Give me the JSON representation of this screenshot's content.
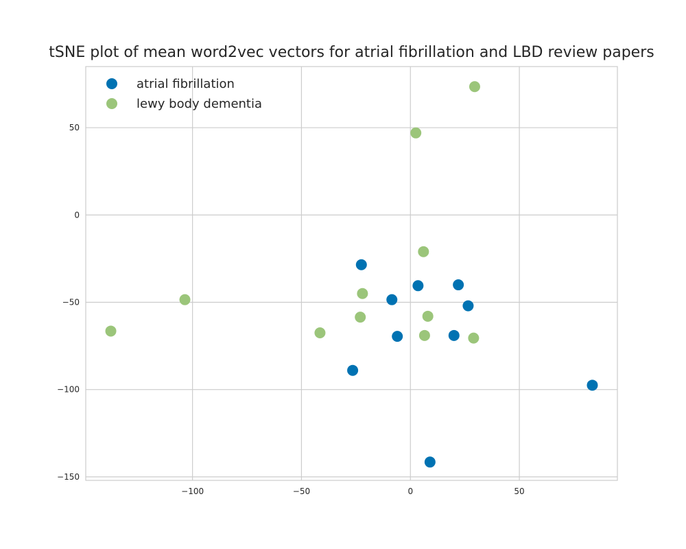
{
  "chart_data": {
    "type": "scatter",
    "title": "tSNE plot of mean word2vec vectors for atrial fibrillation and LBD review papers",
    "xlabel": "",
    "ylabel": "",
    "xlim": [
      -149,
      95
    ],
    "ylim": [
      -152,
      85
    ],
    "xticks": [
      -100,
      -50,
      0,
      50
    ],
    "xtick_labels": [
      "−100",
      "−50",
      "0",
      "50"
    ],
    "yticks": [
      -150,
      -100,
      -50,
      0,
      50
    ],
    "ytick_labels": [
      "−150",
      "−100",
      "−50",
      "0",
      "50"
    ],
    "grid": true,
    "legend_position": "top-left",
    "series": [
      {
        "name": "atrial fibrillation",
        "color": "#0072B2",
        "points": [
          [
            -22.5,
            -28.5
          ],
          [
            3.5,
            -40.5
          ],
          [
            22,
            -40
          ],
          [
            -8.5,
            -48.5
          ],
          [
            26.5,
            -52
          ],
          [
            -6,
            -69.5
          ],
          [
            20,
            -69
          ],
          [
            -26.5,
            -89
          ],
          [
            83.5,
            -97.5
          ],
          [
            9,
            -141.5
          ]
        ]
      },
      {
        "name": "lewy body dementia",
        "color": "#9BC57A",
        "points": [
          [
            29.5,
            73.5
          ],
          [
            2.5,
            47
          ],
          [
            6,
            -21
          ],
          [
            -22,
            -45
          ],
          [
            -103.5,
            -48.5
          ],
          [
            -23,
            -58.5
          ],
          [
            8,
            -58
          ],
          [
            -137.5,
            -66.5
          ],
          [
            -41.5,
            -67.5
          ],
          [
            6.5,
            -69
          ],
          [
            29,
            -70.5
          ]
        ]
      }
    ]
  }
}
